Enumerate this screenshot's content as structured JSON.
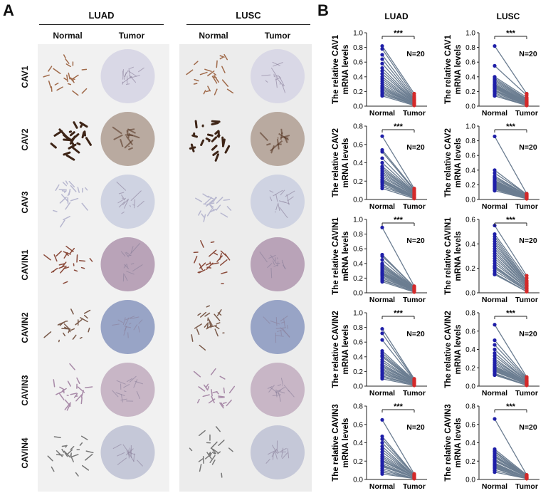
{
  "panel_a": {
    "letter": "A",
    "groups": [
      {
        "title": "LUAD",
        "columns": [
          "Normal",
          "Tumor"
        ]
      },
      {
        "title": "LUSC",
        "columns": [
          "Normal",
          "Tumor"
        ]
      }
    ],
    "rows": [
      "CAV1",
      "CAV2",
      "CAV3",
      "CAVIN1",
      "CAVIN2",
      "CAVIN3",
      "CAVIN4"
    ]
  },
  "panel_b": {
    "letter": "B",
    "column_titles": [
      "LUAD",
      "LUSC"
    ],
    "colors": {
      "normal": "#1f1fa8",
      "tumor": "#d42a2a",
      "line": "#6b7d91"
    }
  },
  "chart_data": [
    {
      "type": "scatter",
      "cohort": "LUAD",
      "ylabel": [
        "The relative CAV1",
        "mRNA levels"
      ],
      "categories": [
        "Normal",
        "Tumor"
      ],
      "ylim": [
        0,
        1.0
      ],
      "yticks": [
        "0.0",
        "0.2",
        "0.4",
        "0.6",
        "0.8",
        "1.0"
      ],
      "significance": "***",
      "n_label": "N=20",
      "series": [
        {
          "name": "Normal",
          "values": [
            0.82,
            0.78,
            0.7,
            0.64,
            0.58,
            0.52,
            0.48,
            0.44,
            0.4,
            0.37,
            0.34,
            0.31,
            0.28,
            0.26,
            0.24,
            0.22,
            0.2,
            0.18,
            0.16,
            0.14
          ]
        },
        {
          "name": "Tumor",
          "values": [
            0.17,
            0.14,
            0.12,
            0.1,
            0.09,
            0.08,
            0.07,
            0.07,
            0.06,
            0.05,
            0.05,
            0.04,
            0.04,
            0.03,
            0.03,
            0.03,
            0.02,
            0.02,
            0.02,
            0.01
          ]
        }
      ]
    },
    {
      "type": "scatter",
      "cohort": "LUSC",
      "ylabel": [
        "The relative CAV1",
        "mRNA levels"
      ],
      "categories": [
        "Normal",
        "Tumor"
      ],
      "ylim": [
        0,
        1.0
      ],
      "yticks": [
        "0.0",
        "0.2",
        "0.4",
        "0.6",
        "0.8",
        "1.0"
      ],
      "significance": "***",
      "n_label": "N=20",
      "series": [
        {
          "name": "Normal",
          "values": [
            0.82,
            0.55,
            0.4,
            0.38,
            0.36,
            0.34,
            0.32,
            0.3,
            0.29,
            0.28,
            0.27,
            0.26,
            0.25,
            0.24,
            0.22,
            0.21,
            0.2,
            0.18,
            0.16,
            0.14
          ]
        },
        {
          "name": "Tumor",
          "values": [
            0.17,
            0.15,
            0.12,
            0.1,
            0.09,
            0.08,
            0.07,
            0.06,
            0.06,
            0.05,
            0.05,
            0.04,
            0.04,
            0.03,
            0.03,
            0.02,
            0.02,
            0.02,
            0.01,
            0.01
          ]
        }
      ]
    },
    {
      "type": "scatter",
      "cohort": "LUAD",
      "ylabel": [
        "The relative CAV2",
        "mRNA levels"
      ],
      "categories": [
        "Normal",
        "Tumor"
      ],
      "ylim": [
        0,
        0.8
      ],
      "yticks": [
        "0.0",
        "0.2",
        "0.4",
        "0.6",
        "0.8"
      ],
      "significance": "***",
      "n_label": "N=20",
      "series": [
        {
          "name": "Normal",
          "values": [
            0.69,
            0.54,
            0.52,
            0.45,
            0.4,
            0.36,
            0.34,
            0.32,
            0.3,
            0.28,
            0.26,
            0.24,
            0.22,
            0.21,
            0.2,
            0.19,
            0.18,
            0.16,
            0.14,
            0.12
          ]
        },
        {
          "name": "Tumor",
          "values": [
            0.12,
            0.11,
            0.1,
            0.09,
            0.08,
            0.08,
            0.07,
            0.07,
            0.06,
            0.06,
            0.05,
            0.05,
            0.04,
            0.04,
            0.03,
            0.03,
            0.02,
            0.02,
            0.02,
            0.01
          ]
        }
      ]
    },
    {
      "type": "scatter",
      "cohort": "LUSC",
      "ylabel": [
        "The relative CAV2",
        "mRNA levels"
      ],
      "categories": [
        "Normal",
        "Tumor"
      ],
      "ylim": [
        0,
        1.0
      ],
      "yticks": [
        "0.0",
        "0.2",
        "0.4",
        "0.6",
        "0.8",
        "1.0"
      ],
      "significance": "***",
      "n_label": "N=20",
      "series": [
        {
          "name": "Normal",
          "values": [
            0.86,
            0.4,
            0.36,
            0.32,
            0.3,
            0.28,
            0.26,
            0.25,
            0.24,
            0.23,
            0.22,
            0.21,
            0.2,
            0.19,
            0.18,
            0.17,
            0.16,
            0.15,
            0.14,
            0.12
          ]
        },
        {
          "name": "Tumor",
          "values": [
            0.08,
            0.07,
            0.07,
            0.06,
            0.06,
            0.06,
            0.05,
            0.05,
            0.05,
            0.04,
            0.04,
            0.04,
            0.03,
            0.03,
            0.03,
            0.02,
            0.02,
            0.02,
            0.01,
            0.01
          ]
        }
      ]
    },
    {
      "type": "scatter",
      "cohort": "LUAD",
      "ylabel": [
        "The relative CAVIN1",
        "mRNA levels"
      ],
      "categories": [
        "Normal",
        "Tumor"
      ],
      "ylim": [
        0,
        1.0
      ],
      "yticks": [
        "0.0",
        "0.2",
        "0.4",
        "0.6",
        "0.8",
        "1.0"
      ],
      "significance": "***",
      "n_label": "N=20",
      "series": [
        {
          "name": "Normal",
          "values": [
            0.89,
            0.52,
            0.5,
            0.45,
            0.4,
            0.38,
            0.36,
            0.34,
            0.32,
            0.3,
            0.28,
            0.27,
            0.26,
            0.25,
            0.24,
            0.22,
            0.2,
            0.18,
            0.17,
            0.15
          ]
        },
        {
          "name": "Tumor",
          "values": [
            0.09,
            0.08,
            0.08,
            0.07,
            0.07,
            0.06,
            0.06,
            0.06,
            0.05,
            0.05,
            0.05,
            0.04,
            0.04,
            0.04,
            0.03,
            0.03,
            0.03,
            0.02,
            0.02,
            0.01
          ]
        }
      ]
    },
    {
      "type": "scatter",
      "cohort": "LUSC",
      "ylabel": [
        "The relative CAVIN1",
        "mRNA levels"
      ],
      "categories": [
        "Normal",
        "Tumor"
      ],
      "ylim": [
        0,
        0.6
      ],
      "yticks": [
        "0.0",
        "0.2",
        "0.4",
        "0.6"
      ],
      "significance": "***",
      "n_label": "N=20",
      "series": [
        {
          "name": "Normal",
          "values": [
            0.55,
            0.48,
            0.46,
            0.44,
            0.42,
            0.4,
            0.38,
            0.36,
            0.34,
            0.32,
            0.3,
            0.28,
            0.26,
            0.24,
            0.22,
            0.21,
            0.2,
            0.18,
            0.16,
            0.15
          ]
        },
        {
          "name": "Tumor",
          "values": [
            0.14,
            0.12,
            0.1,
            0.09,
            0.08,
            0.08,
            0.07,
            0.07,
            0.06,
            0.06,
            0.05,
            0.05,
            0.04,
            0.04,
            0.03,
            0.03,
            0.02,
            0.02,
            0.01,
            0.01
          ]
        }
      ]
    },
    {
      "type": "scatter",
      "cohort": "LUAD",
      "ylabel": [
        "The relative CAVIN2",
        "mRNA levels"
      ],
      "categories": [
        "Normal",
        "Tumor"
      ],
      "ylim": [
        0,
        1.0
      ],
      "yticks": [
        "0.0",
        "0.2",
        "0.4",
        "0.6",
        "0.8",
        "1.0"
      ],
      "significance": "***",
      "n_label": "N=20",
      "series": [
        {
          "name": "Normal",
          "values": [
            0.78,
            0.72,
            0.63,
            0.48,
            0.45,
            0.42,
            0.4,
            0.36,
            0.33,
            0.3,
            0.28,
            0.26,
            0.24,
            0.22,
            0.2,
            0.18,
            0.16,
            0.14,
            0.12,
            0.1
          ]
        },
        {
          "name": "Tumor",
          "values": [
            0.1,
            0.09,
            0.08,
            0.08,
            0.07,
            0.07,
            0.06,
            0.06,
            0.06,
            0.05,
            0.05,
            0.05,
            0.04,
            0.04,
            0.03,
            0.03,
            0.03,
            0.02,
            0.02,
            0.01
          ]
        }
      ]
    },
    {
      "type": "scatter",
      "cohort": "LUSC",
      "ylabel": [
        "The relative CAVIN2",
        "mRNA levels"
      ],
      "categories": [
        "Normal",
        "Tumor"
      ],
      "ylim": [
        0,
        0.8
      ],
      "yticks": [
        "0.0",
        "0.2",
        "0.4",
        "0.6",
        "0.8"
      ],
      "significance": "***",
      "n_label": "N=20",
      "series": [
        {
          "name": "Normal",
          "values": [
            0.67,
            0.5,
            0.45,
            0.4,
            0.36,
            0.33,
            0.3,
            0.28,
            0.26,
            0.24,
            0.22,
            0.21,
            0.2,
            0.19,
            0.18,
            0.17,
            0.16,
            0.14,
            0.13,
            0.12
          ]
        },
        {
          "name": "Tumor",
          "values": [
            0.1,
            0.09,
            0.08,
            0.07,
            0.06,
            0.06,
            0.05,
            0.05,
            0.04,
            0.04,
            0.04,
            0.03,
            0.03,
            0.03,
            0.02,
            0.02,
            0.02,
            0.01,
            0.01,
            0.01
          ]
        }
      ]
    },
    {
      "type": "scatter",
      "cohort": "LUAD",
      "ylabel": [
        "The relative CAVIN3",
        "mRNA levels"
      ],
      "categories": [
        "Normal",
        "Tumor"
      ],
      "ylim": [
        0,
        0.8
      ],
      "yticks": [
        "0.0",
        "0.2",
        "0.4",
        "0.6",
        "0.8"
      ],
      "significance": "***",
      "n_label": "N=20",
      "series": [
        {
          "name": "Normal",
          "values": [
            0.65,
            0.47,
            0.44,
            0.4,
            0.36,
            0.33,
            0.3,
            0.27,
            0.25,
            0.23,
            0.21,
            0.2,
            0.18,
            0.16,
            0.15,
            0.14,
            0.12,
            0.1,
            0.08,
            0.06
          ]
        },
        {
          "name": "Tumor",
          "values": [
            0.06,
            0.05,
            0.05,
            0.05,
            0.04,
            0.04,
            0.04,
            0.04,
            0.03,
            0.03,
            0.03,
            0.03,
            0.02,
            0.02,
            0.02,
            0.02,
            0.01,
            0.01,
            0.01,
            0.01
          ]
        }
      ]
    },
    {
      "type": "scatter",
      "cohort": "LUSC",
      "ylabel": [
        "The relative CAVIN3",
        "mRNA levels"
      ],
      "categories": [
        "Normal",
        "Tumor"
      ],
      "ylim": [
        0,
        0.8
      ],
      "yticks": [
        "0.0",
        "0.2",
        "0.4",
        "0.6",
        "0.8"
      ],
      "significance": "***",
      "n_label": "N=20",
      "series": [
        {
          "name": "Normal",
          "values": [
            0.66,
            0.33,
            0.31,
            0.3,
            0.28,
            0.26,
            0.25,
            0.24,
            0.22,
            0.21,
            0.2,
            0.18,
            0.17,
            0.16,
            0.15,
            0.14,
            0.13,
            0.12,
            0.1,
            0.08
          ]
        },
        {
          "name": "Tumor",
          "values": [
            0.05,
            0.05,
            0.04,
            0.04,
            0.04,
            0.04,
            0.03,
            0.03,
            0.03,
            0.03,
            0.03,
            0.02,
            0.02,
            0.02,
            0.02,
            0.02,
            0.01,
            0.01,
            0.01,
            0.01
          ]
        }
      ]
    }
  ]
}
